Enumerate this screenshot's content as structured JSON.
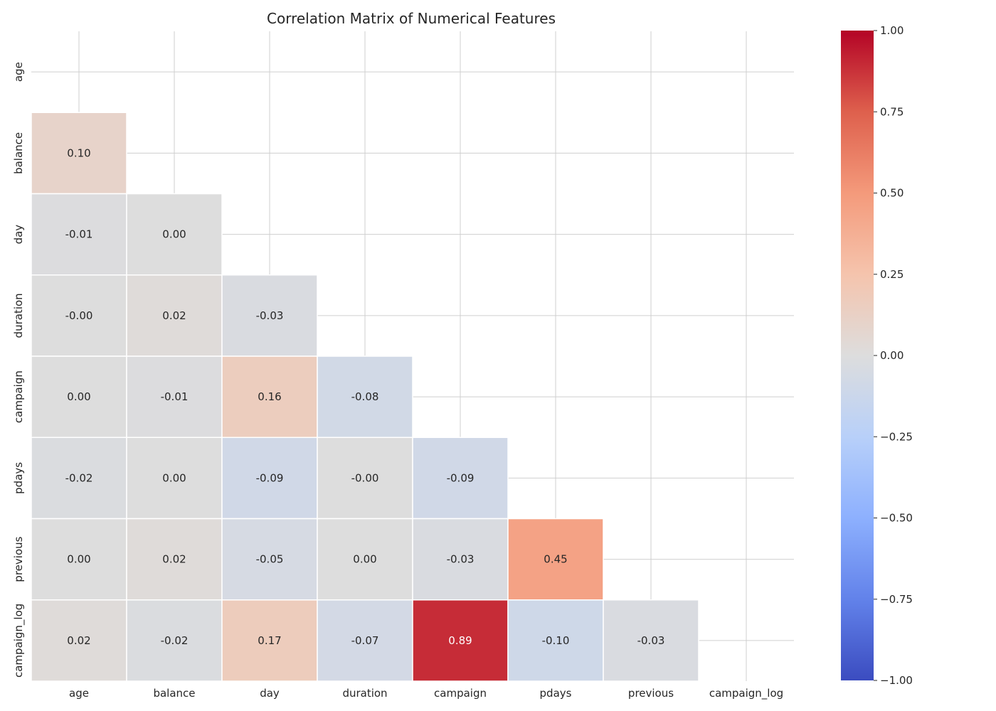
{
  "chart_data": {
    "type": "heatmap",
    "title": "Correlation Matrix of Numerical Features",
    "xlabel": "",
    "ylabel": "",
    "grid": true,
    "mask": "upper-triangle-including-diagonal",
    "labels": [
      "age",
      "balance",
      "day",
      "duration",
      "campaign",
      "pdays",
      "previous",
      "campaign_log"
    ],
    "values": [
      [
        null,
        null,
        null,
        null,
        null,
        null,
        null,
        null
      ],
      [
        0.1,
        null,
        null,
        null,
        null,
        null,
        null,
        null
      ],
      [
        -0.01,
        0.0,
        null,
        null,
        null,
        null,
        null,
        null
      ],
      [
        -0.0,
        0.02,
        -0.03,
        null,
        null,
        null,
        null,
        null
      ],
      [
        0.0,
        -0.01,
        0.16,
        -0.08,
        null,
        null,
        null,
        null
      ],
      [
        -0.02,
        0.0,
        -0.09,
        -0.0,
        -0.09,
        null,
        null,
        null
      ],
      [
        0.0,
        0.02,
        -0.05,
        0.0,
        -0.03,
        0.45,
        null,
        null
      ],
      [
        0.02,
        -0.02,
        0.17,
        -0.07,
        0.89,
        -0.1,
        -0.03,
        null
      ]
    ],
    "value_labels": [
      [],
      [
        "0.10"
      ],
      [
        "-0.01",
        "0.00"
      ],
      [
        "-0.00",
        "0.02",
        "-0.03"
      ],
      [
        "0.00",
        "-0.01",
        "0.16",
        "-0.08"
      ],
      [
        "-0.02",
        "0.00",
        "-0.09",
        "-0.00",
        "-0.09"
      ],
      [
        "0.00",
        "0.02",
        "-0.05",
        "0.00",
        "-0.03",
        "0.45"
      ],
      [
        "0.02",
        "-0.02",
        "0.17",
        "-0.07",
        "0.89",
        "-0.10",
        "-0.03"
      ]
    ],
    "colormap": "coolwarm",
    "colorbar": {
      "range": [
        -1.0,
        1.0
      ],
      "ticks": [
        1.0,
        0.75,
        0.5,
        0.25,
        0.0,
        -0.25,
        -0.5,
        -0.75,
        -1.0
      ],
      "tick_labels": [
        "1.00",
        "0.75",
        "0.50",
        "0.25",
        "0.00",
        "−0.25",
        "−0.50",
        "−0.75",
        "−1.00"
      ]
    }
  }
}
